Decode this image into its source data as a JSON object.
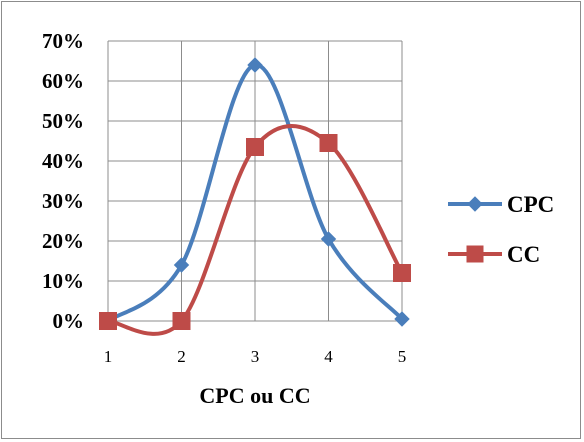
{
  "chart_data": {
    "type": "line",
    "x": [
      1,
      2,
      3,
      4,
      5
    ],
    "xlabel": "CPC ou CC",
    "ylabel": "",
    "ylim": [
      0,
      0.7
    ],
    "y_ticks": [
      "0%",
      "10%",
      "20%",
      "30%",
      "40%",
      "50%",
      "60%",
      "70%"
    ],
    "x_ticks": [
      "1",
      "2",
      "3",
      "4",
      "5"
    ],
    "grid": true,
    "smoothed": true,
    "legend_position": "right",
    "series": [
      {
        "name": "CPC",
        "values": [
          0.0,
          0.14,
          0.64,
          0.205,
          0.005
        ],
        "color": "#4a7ebb",
        "marker": "diamond"
      },
      {
        "name": "CC",
        "values": [
          0.0,
          0.0,
          0.435,
          0.445,
          0.12
        ],
        "color": "#be4b48",
        "marker": "square"
      }
    ]
  }
}
